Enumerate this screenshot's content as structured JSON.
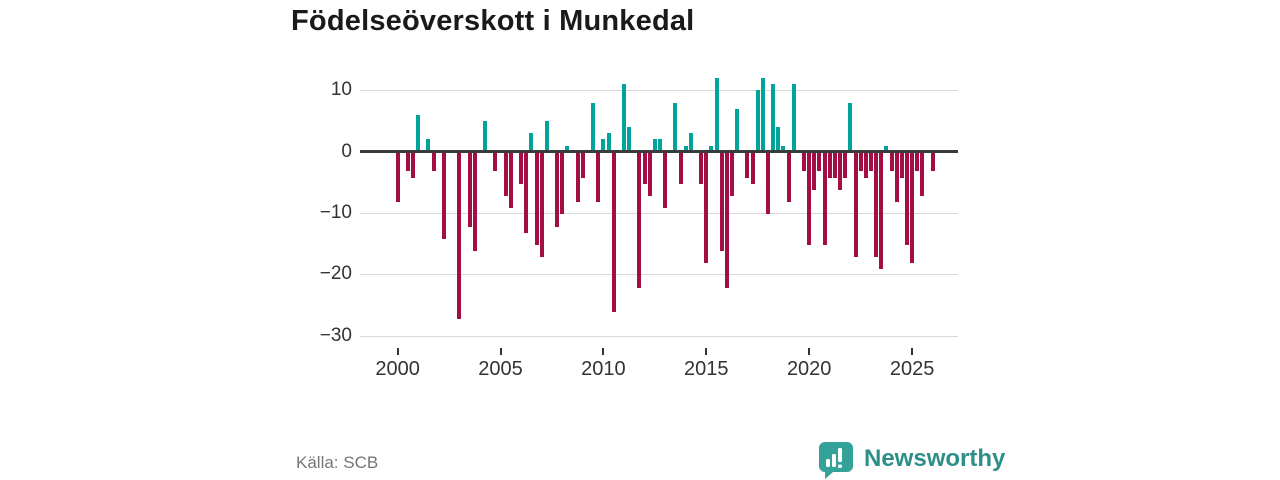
{
  "title": "Födelseöverskott i Munkedal",
  "source": "Källa: SCB",
  "brand": {
    "name": "Newsworthy",
    "text_color": "#2E8F88",
    "icon_color": "#35A29A",
    "icon": "newsworthy-speech-bubble-bar-chart-icon"
  },
  "chart_data": {
    "type": "bar",
    "title": "Födelseöverskott i Munkedal",
    "x_start_year": 2000,
    "x_step_years": 0.25,
    "frequency": "quarterly",
    "values": [
      -8,
      0,
      -3,
      -4,
      6,
      0,
      2,
      -3,
      0,
      -14,
      0,
      0,
      -27,
      0,
      -12,
      -16,
      0,
      5,
      0,
      -3,
      0,
      -7,
      -9,
      0,
      -5,
      -13,
      3,
      -15,
      -17,
      5,
      0,
      -12,
      -10,
      1,
      0,
      -8,
      -4,
      0,
      8,
      -8,
      2,
      3,
      -26,
      0,
      11,
      4,
      0,
      -22,
      -5,
      -7,
      2,
      2,
      -9,
      0,
      8,
      -5,
      1,
      3,
      0,
      -5,
      -18,
      1,
      12,
      -16,
      -22,
      -7,
      7,
      0,
      -4,
      -5,
      10,
      12,
      -10,
      11,
      4,
      1,
      -8,
      11,
      0,
      -3,
      -15,
      -6,
      -3,
      -15,
      -4,
      -4,
      -6,
      -4,
      8,
      -17,
      -3,
      -4,
      -3,
      -17,
      -19,
      1,
      -3,
      -8,
      -4,
      -15,
      -18,
      -3,
      -7,
      0,
      -3
    ],
    "pos_color": "#00A49A",
    "neg_color": "#A50D45",
    "xticks": [
      2000,
      2005,
      2010,
      2015,
      2020,
      2025
    ],
    "yticks": [
      10,
      0,
      -10,
      -20,
      -30
    ],
    "ylim": [
      -30,
      12
    ],
    "grid": true,
    "legend_position": "none",
    "xlabel": "",
    "ylabel": ""
  }
}
